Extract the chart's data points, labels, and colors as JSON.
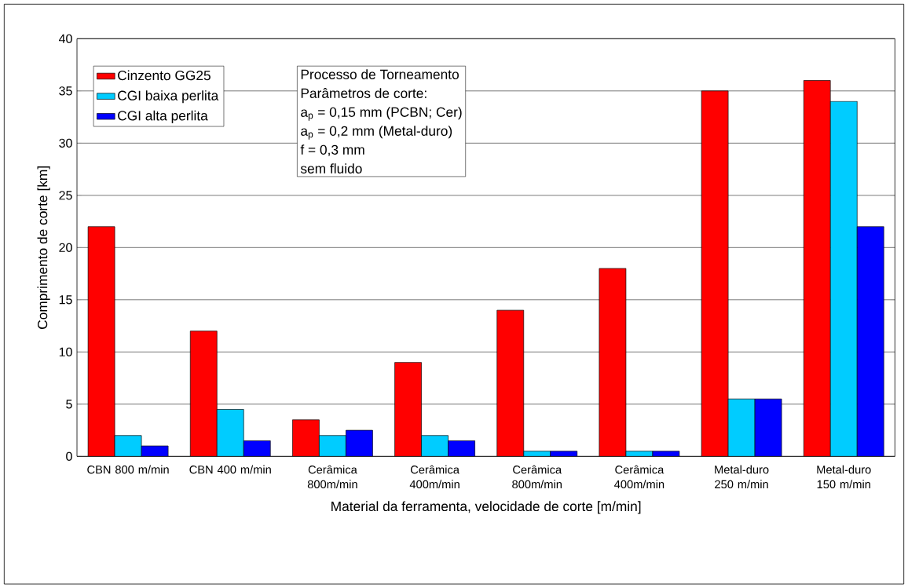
{
  "chart_data": {
    "type": "bar",
    "xlabel": "Material da ferramenta, velocidade de corte [m/min]",
    "ylabel": "Comprimento de corte [km]",
    "categories": [
      "CBN 800 m/min",
      "CBN 400 m/min",
      "Cerâmica 800m/min",
      "Cerâmica 400m/min",
      "Cerâmica 800m/min",
      "Cerâmica 400m/min",
      "Metal-duro 250 m/min",
      "Metal-duro 150 m/min"
    ],
    "series": [
      {
        "name": "Cinzento GG25",
        "color": "#ff0000",
        "values": [
          22,
          12,
          3.5,
          9,
          14,
          18,
          35,
          36
        ]
      },
      {
        "name": "CGI baixa perlita",
        "color": "#00ccff",
        "values": [
          2,
          4.5,
          2,
          2,
          0.5,
          0.5,
          5.5,
          34
        ]
      },
      {
        "name": "CGI alta perlita",
        "color": "#0000ff",
        "values": [
          1,
          1.5,
          2.5,
          1.5,
          0.5,
          0.5,
          5.5,
          22
        ]
      }
    ],
    "ylim": [
      0,
      40
    ],
    "yticks": [
      0,
      5,
      10,
      15,
      20,
      25,
      30,
      35,
      40
    ],
    "grid": "y",
    "legend": "top left",
    "annotations": [
      "Processo de Torneamento",
      "Parâmetros de corte:",
      "a$_{p}$ = 0,15 mm (PCBN; Cer)",
      "a$_{p}$ = 0,2 mm (Metal-duro)",
      "f = 0,3 mm",
      "sem fluido"
    ]
  }
}
